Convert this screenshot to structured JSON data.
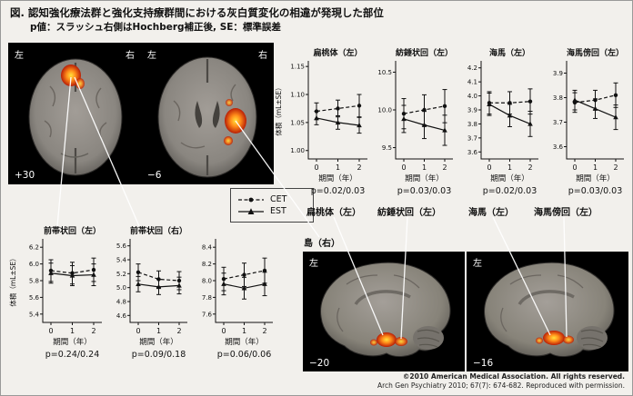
{
  "figure": {
    "title": "図. 認知強化療法群と強化支持療群間における灰白質変化の相違が発現した部位",
    "subtitle": "p値：スラッシュ右側はHochberg補正後, SE：標準誤差",
    "copyright_line1": "©2010 American Medical Association. All rights reserved.",
    "copyright_line2": "Arch Gen Psychiatry 2010; 67(7): 674-682.  Reproduced with permission."
  },
  "brains": {
    "axial_plus30": {
      "side_left": "左",
      "side_right": "右",
      "slice": "+30"
    },
    "axial_minus6": {
      "side_left": "左",
      "side_right": "右",
      "slice": "−6"
    },
    "sagittal_minus20": {
      "side": "左",
      "slice": "−20"
    },
    "sagittal_minus16": {
      "side": "左",
      "slice": "−16"
    }
  },
  "chart_data": [
    {
      "id": "amygdala-left",
      "type": "line",
      "title": "扁桃体（左）",
      "ylabel": "体積（mL±SE）",
      "xlabel": "期間（年）",
      "p_label": "p=0.02/0.03",
      "x": [
        0,
        1,
        2
      ],
      "x_labels": [
        "0",
        "1",
        "2"
      ],
      "ylim": [
        0.985,
        1.16
      ],
      "yticks": [
        1.0,
        1.05,
        1.1,
        1.15
      ],
      "ytick_labels": [
        "1.00",
        "1.05",
        "1.10",
        "1.15"
      ],
      "series": [
        {
          "name": "CET",
          "line": "dashed",
          "marker": "circle",
          "values": [
            1.07,
            1.075,
            1.08
          ],
          "err": [
            0.015,
            0.015,
            0.02
          ]
        },
        {
          "name": "EST",
          "line": "solid",
          "marker": "triangle",
          "values": [
            1.058,
            1.05,
            1.045
          ],
          "err": [
            0.012,
            0.012,
            0.014
          ]
        }
      ]
    },
    {
      "id": "fusiform-left",
      "type": "line",
      "title": "紡錘状回（左）",
      "ylabel": "",
      "xlabel": "期間（年）",
      "p_label": "p=0.03/0.03",
      "x": [
        0,
        1,
        2
      ],
      "x_labels": [
        "0",
        "1",
        "2"
      ],
      "ylim": [
        9.35,
        10.65
      ],
      "yticks": [
        9.5,
        10.0,
        10.5
      ],
      "ytick_labels": [
        "9.5",
        "10.0",
        "10.5"
      ],
      "series": [
        {
          "name": "CET",
          "line": "dashed",
          "marker": "circle",
          "values": [
            9.95,
            10.0,
            10.05
          ],
          "err": [
            0.2,
            0.2,
            0.22
          ]
        },
        {
          "name": "EST",
          "line": "solid",
          "marker": "triangle",
          "values": [
            9.88,
            9.8,
            9.73
          ],
          "err": [
            0.18,
            0.18,
            0.2
          ]
        }
      ]
    },
    {
      "id": "hippocampus-left",
      "type": "line",
      "title": "海馬（左）",
      "ylabel": "",
      "xlabel": "期間（年）",
      "p_label": "p=0.02/0.03",
      "x": [
        0,
        1,
        2
      ],
      "x_labels": [
        "0",
        "1",
        "2"
      ],
      "ylim": [
        3.55,
        4.25
      ],
      "yticks": [
        3.6,
        3.7,
        3.8,
        3.9,
        4.0,
        4.1,
        4.2
      ],
      "ytick_labels": [
        "3.6",
        "3.7",
        "3.8",
        "3.9",
        "4.0",
        "4.1",
        "4.2"
      ],
      "series": [
        {
          "name": "CET",
          "line": "dashed",
          "marker": "circle",
          "values": [
            3.95,
            3.95,
            3.96
          ],
          "err": [
            0.08,
            0.08,
            0.09
          ]
        },
        {
          "name": "EST",
          "line": "solid",
          "marker": "triangle",
          "values": [
            3.94,
            3.86,
            3.8
          ],
          "err": [
            0.08,
            0.08,
            0.09
          ]
        }
      ]
    },
    {
      "id": "parahippocampal-left",
      "type": "line",
      "title": "海馬傍回（左）",
      "ylabel": "",
      "xlabel": "期間（年）",
      "p_label": "p=0.03/0.03",
      "x": [
        0,
        1,
        2
      ],
      "x_labels": [
        "0",
        "1",
        "2"
      ],
      "ylim": [
        3.55,
        3.95
      ],
      "yticks": [
        3.6,
        3.7,
        3.8,
        3.9
      ],
      "ytick_labels": [
        "3.6",
        "3.7",
        "3.8",
        "3.9"
      ],
      "series": [
        {
          "name": "CET",
          "line": "dashed",
          "marker": "circle",
          "values": [
            3.78,
            3.79,
            3.81
          ],
          "err": [
            0.04,
            0.04,
            0.05
          ]
        },
        {
          "name": "EST",
          "line": "solid",
          "marker": "triangle",
          "values": [
            3.79,
            3.755,
            3.72
          ],
          "err": [
            0.04,
            0.04,
            0.05
          ]
        }
      ]
    },
    {
      "id": "acc-left",
      "type": "line",
      "title": "前帯状回（左）",
      "ylabel": "体積（mL±SE）",
      "xlabel": "期間（年）",
      "p_label": "p=0.24/0.24",
      "x": [
        0,
        1,
        2
      ],
      "x_labels": [
        "0",
        "1",
        "2"
      ],
      "ylim": [
        5.3,
        6.3
      ],
      "yticks": [
        5.4,
        5.6,
        5.8,
        6.0,
        6.2
      ],
      "ytick_labels": [
        "5.4",
        "5.6",
        "5.8",
        "6.0",
        "6.2"
      ],
      "series": [
        {
          "name": "CET",
          "line": "dashed",
          "marker": "circle",
          "values": [
            5.92,
            5.89,
            5.93
          ],
          "err": [
            0.13,
            0.13,
            0.14
          ]
        },
        {
          "name": "EST",
          "line": "solid",
          "marker": "triangle",
          "values": [
            5.89,
            5.86,
            5.87
          ],
          "err": [
            0.12,
            0.12,
            0.13
          ]
        }
      ]
    },
    {
      "id": "acc-right",
      "type": "line",
      "title": "前帯状回（右）",
      "ylabel": "",
      "xlabel": "期間（年）",
      "p_label": "p=0.09/0.18",
      "x": [
        0,
        1,
        2
      ],
      "x_labels": [
        "0",
        "1",
        "2"
      ],
      "ylim": [
        4.5,
        5.7
      ],
      "yticks": [
        4.6,
        4.8,
        5.0,
        5.2,
        5.4,
        5.6
      ],
      "ytick_labels": [
        "4.6",
        "4.8",
        "5.0",
        "5.2",
        "5.4",
        "5.6"
      ],
      "series": [
        {
          "name": "CET",
          "line": "dashed",
          "marker": "circle",
          "values": [
            5.22,
            5.12,
            5.1
          ],
          "err": [
            0.12,
            0.12,
            0.13
          ]
        },
        {
          "name": "EST",
          "line": "solid",
          "marker": "triangle",
          "values": [
            5.05,
            5.01,
            5.03
          ],
          "err": [
            0.11,
            0.11,
            0.12
          ]
        }
      ]
    },
    {
      "id": "insula-right",
      "type": "line",
      "title": "島（右）",
      "title_offset": true,
      "ylabel": "",
      "xlabel": "期間（年）",
      "p_label": "p=0.06/0.06",
      "x": [
        0,
        1,
        2
      ],
      "x_labels": [
        "0",
        "1",
        "2"
      ],
      "ylim": [
        7.5,
        8.5
      ],
      "yticks": [
        7.6,
        7.8,
        8.0,
        8.2,
        8.4
      ],
      "ytick_labels": [
        "7.6",
        "7.8",
        "8.0",
        "8.2",
        "8.4"
      ],
      "series": [
        {
          "name": "CET",
          "line": "dashed",
          "marker": "circle",
          "values": [
            8.02,
            8.07,
            8.12
          ],
          "err": [
            0.14,
            0.14,
            0.15
          ]
        },
        {
          "name": "EST",
          "line": "solid",
          "marker": "triangle",
          "values": [
            7.96,
            7.91,
            7.96
          ],
          "err": [
            0.13,
            0.13,
            0.14
          ]
        }
      ]
    }
  ]
}
